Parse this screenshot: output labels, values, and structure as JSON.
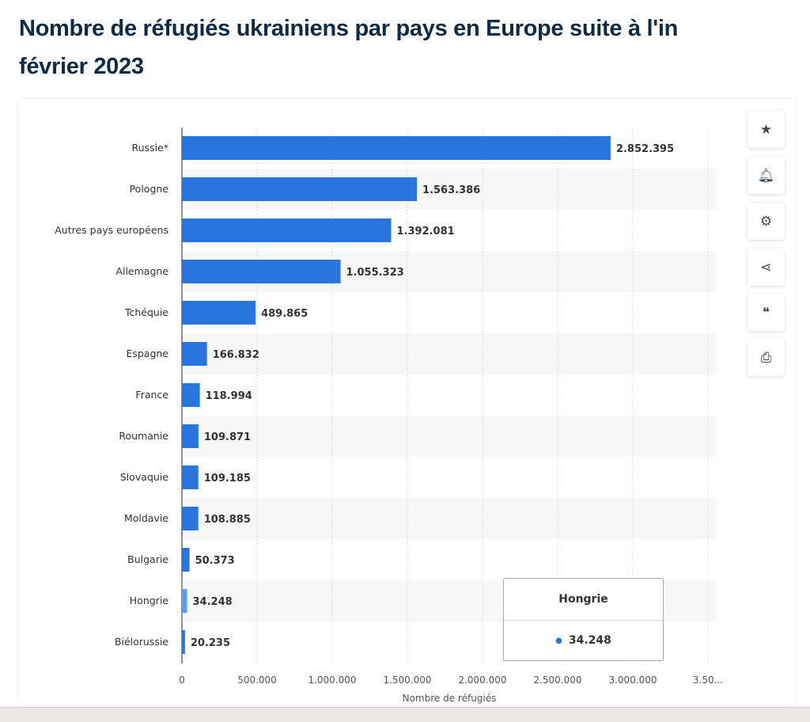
{
  "title_line1": "Nombre de réfugiés ukrainiens par pays en Europe suite à l'in",
  "title_line2": "février 2023",
  "tooltip": {
    "label": "Hongrie",
    "value": "34.248"
  },
  "side_buttons": [
    "star-icon",
    "bell-icon",
    "gear-icon",
    "share-icon",
    "quote-icon",
    "print-icon"
  ],
  "chart_data": {
    "type": "bar",
    "orientation": "horizontal",
    "categories": [
      "Russie*",
      "Pologne",
      "Autres pays européens",
      "Allemagne",
      "Tchéquie",
      "Espagne",
      "France",
      "Roumanie",
      "Slovaquie",
      "Moldavie",
      "Bulgarie",
      "Hongrie",
      "Biélorussie"
    ],
    "values": [
      2852395,
      1563386,
      1392081,
      1055323,
      489865,
      166832,
      118994,
      109871,
      109185,
      108885,
      50373,
      34248,
      20235
    ],
    "labels": [
      "2.852.395",
      "1.563.386",
      "1.392.081",
      "1.055.323",
      "489.865",
      "166.832",
      "118.994",
      "109.871",
      "109.185",
      "108.885",
      "50.373",
      "34.248",
      "20.235"
    ],
    "xlabel": "Nombre de réfugiés",
    "xticks": [
      "0",
      "500.000",
      "1.000.000",
      "1.500.000",
      "2.000.000",
      "2.500.000",
      "3.000.000",
      "3.50..."
    ],
    "xlim": [
      0,
      3500000
    ],
    "color": "#2876dd",
    "highlight_color": "#5a9cf0",
    "grid": true
  }
}
